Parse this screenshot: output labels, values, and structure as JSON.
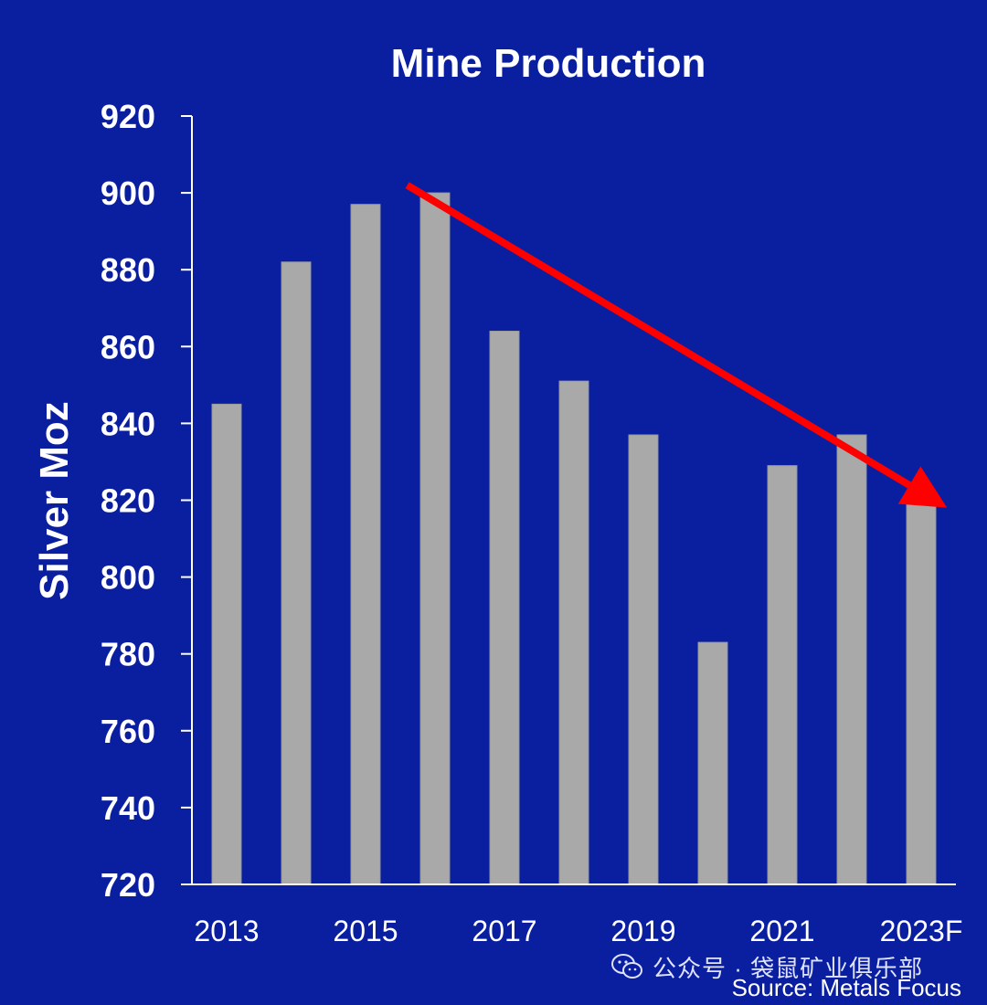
{
  "chart_data": {
    "type": "bar",
    "title": "Mine Production",
    "ylabel": "Silver  Moz",
    "xlabel": "",
    "categories": [
      "2013",
      "2014",
      "2015",
      "2016",
      "2017",
      "2018",
      "2019",
      "2020",
      "2021",
      "2022",
      "2023F"
    ],
    "x_tick_labels": [
      "2013",
      "2015",
      "2017",
      "2019",
      "2021",
      "2023F"
    ],
    "values": [
      845,
      882,
      897,
      900,
      864,
      851,
      837,
      783,
      829,
      837,
      820
    ],
    "ylim": [
      720,
      920
    ],
    "yticks": [
      720,
      740,
      760,
      780,
      800,
      820,
      840,
      860,
      880,
      900,
      920
    ],
    "grid": false,
    "legend": "none",
    "bar_color": "#A9A9A9",
    "background_color": "#0A1EA0",
    "annotation": {
      "type": "arrow",
      "color": "#FF0000",
      "from": {
        "x": "2016",
        "y": 902
      },
      "to": {
        "x": "2023F",
        "y": 821
      }
    }
  },
  "watermark": {
    "icon": "wechat-icon",
    "text": "公众号 · 袋鼠矿业俱乐部"
  },
  "source": "Source: Metals Focus"
}
